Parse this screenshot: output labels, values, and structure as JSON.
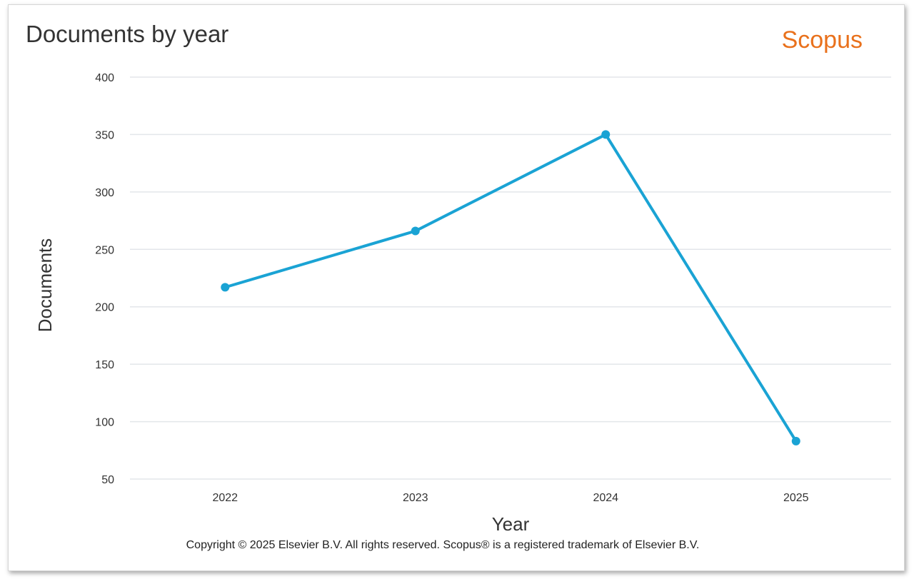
{
  "header": {
    "title": "Documents by year",
    "brand": "Scopus"
  },
  "footer": {
    "copyright": "Copyright © 2025 Elsevier B.V. All rights reserved. Scopus® is a registered trademark of Elsevier B.V."
  },
  "colors": {
    "series": "#1aa3d4",
    "grid": "#e3e6ea",
    "brand": "#e9711c"
  },
  "chart_data": {
    "type": "line",
    "title": "Documents by year",
    "xlabel": "Year",
    "ylabel": "Documents",
    "categories": [
      "2022",
      "2023",
      "2024",
      "2025"
    ],
    "series": [
      {
        "values": [
          217,
          266,
          350,
          83
        ]
      }
    ],
    "ylim": [
      50,
      400
    ],
    "yticks": [
      50,
      100,
      150,
      200,
      250,
      300,
      350,
      400
    ],
    "grid": true,
    "legend": "none"
  }
}
